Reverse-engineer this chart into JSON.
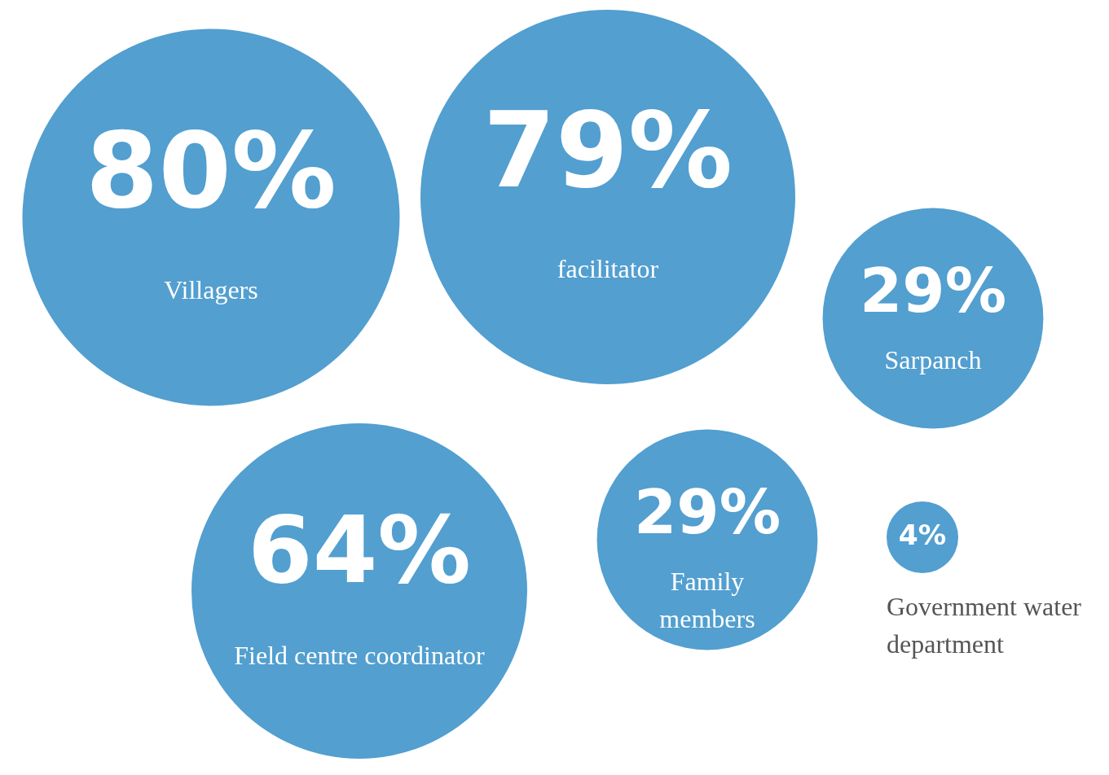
{
  "chart_data": {
    "type": "other",
    "categories": [
      "Villagers",
      "facilitator",
      "Sarpanch",
      "Field centre coordinator",
      "Family members",
      "Government water department"
    ],
    "values": [
      80,
      79,
      29,
      64,
      29,
      4
    ],
    "value_labels": [
      "80%",
      "79%",
      "29%",
      "64%",
      "29%",
      "4%"
    ],
    "color": "#529fd0"
  }
}
